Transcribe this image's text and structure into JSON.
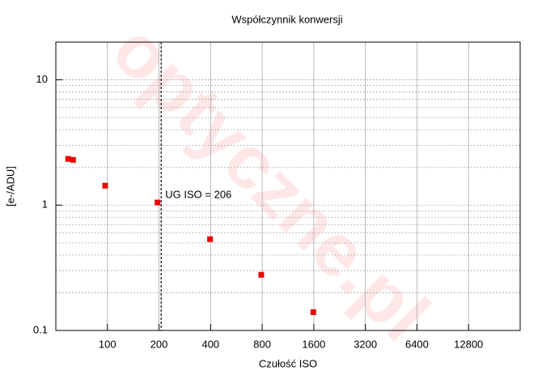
{
  "chart_data": {
    "type": "scatter",
    "title": "Współczynnik konwersji",
    "x_label": "Czułość ISO",
    "y_label": "[e-/ADU]",
    "watermark": "optyczne.pl",
    "x": [
      59,
      63,
      97,
      196,
      397,
      790,
      1590
    ],
    "values": [
      2.34,
      2.3,
      1.43,
      1.05,
      0.535,
      0.278,
      0.14
    ],
    "color": "#ee0000",
    "xlim": [
      50,
      25600
    ],
    "xticks": [
      100,
      200,
      400,
      800,
      1600,
      3200,
      6400,
      12800
    ],
    "xscale": "log2",
    "ylim": [
      0.1,
      20
    ],
    "yticks": [
      0.1,
      1,
      10
    ],
    "yscale": "log",
    "grid": true,
    "minor_grid": true,
    "vline": {
      "x": 206,
      "label": "UG ISO = 206"
    }
  }
}
